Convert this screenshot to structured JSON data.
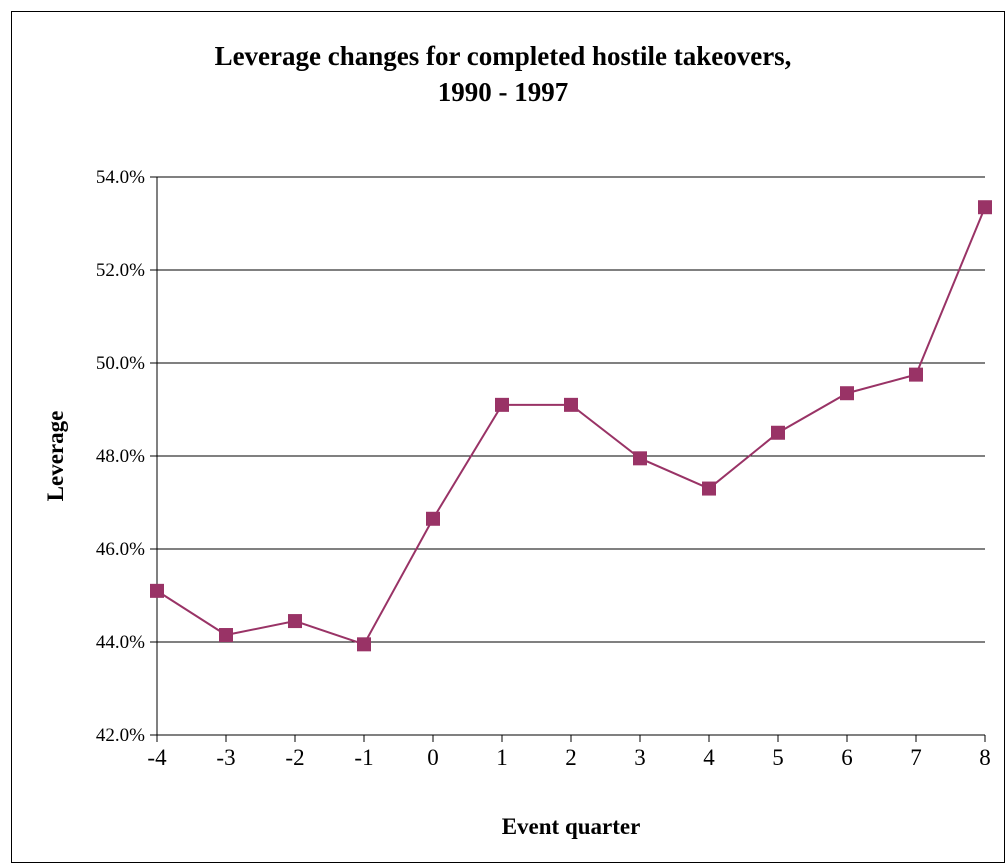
{
  "chart_data": {
    "type": "line",
    "title_lines": [
      "Leverage changes for completed hostile takeovers,",
      "1990 - 1997"
    ],
    "xlabel": "Event quarter",
    "ylabel": "Leverage",
    "categories": [
      "-4",
      "-3",
      "-2",
      "-1",
      "0",
      "1",
      "2",
      "3",
      "4",
      "5",
      "6",
      "7",
      "8"
    ],
    "series": [
      {
        "values": [
          45.1,
          44.15,
          44.45,
          43.95,
          46.65,
          49.1,
          49.1,
          47.95,
          47.3,
          48.5,
          49.35,
          49.75,
          53.35
        ]
      }
    ],
    "ylim": [
      42.0,
      54.0
    ],
    "yticks": [
      42.0,
      44.0,
      46.0,
      48.0,
      50.0,
      52.0,
      54.0
    ],
    "ytick_labels": [
      "42.0%",
      "44.0%",
      "46.0%",
      "48.0%",
      "50.0%",
      "52.0%",
      "54.0%"
    ],
    "grid": true,
    "legend": "none",
    "colors": {
      "series": "#993366",
      "grid": "#000000",
      "axis": "#000000"
    }
  }
}
